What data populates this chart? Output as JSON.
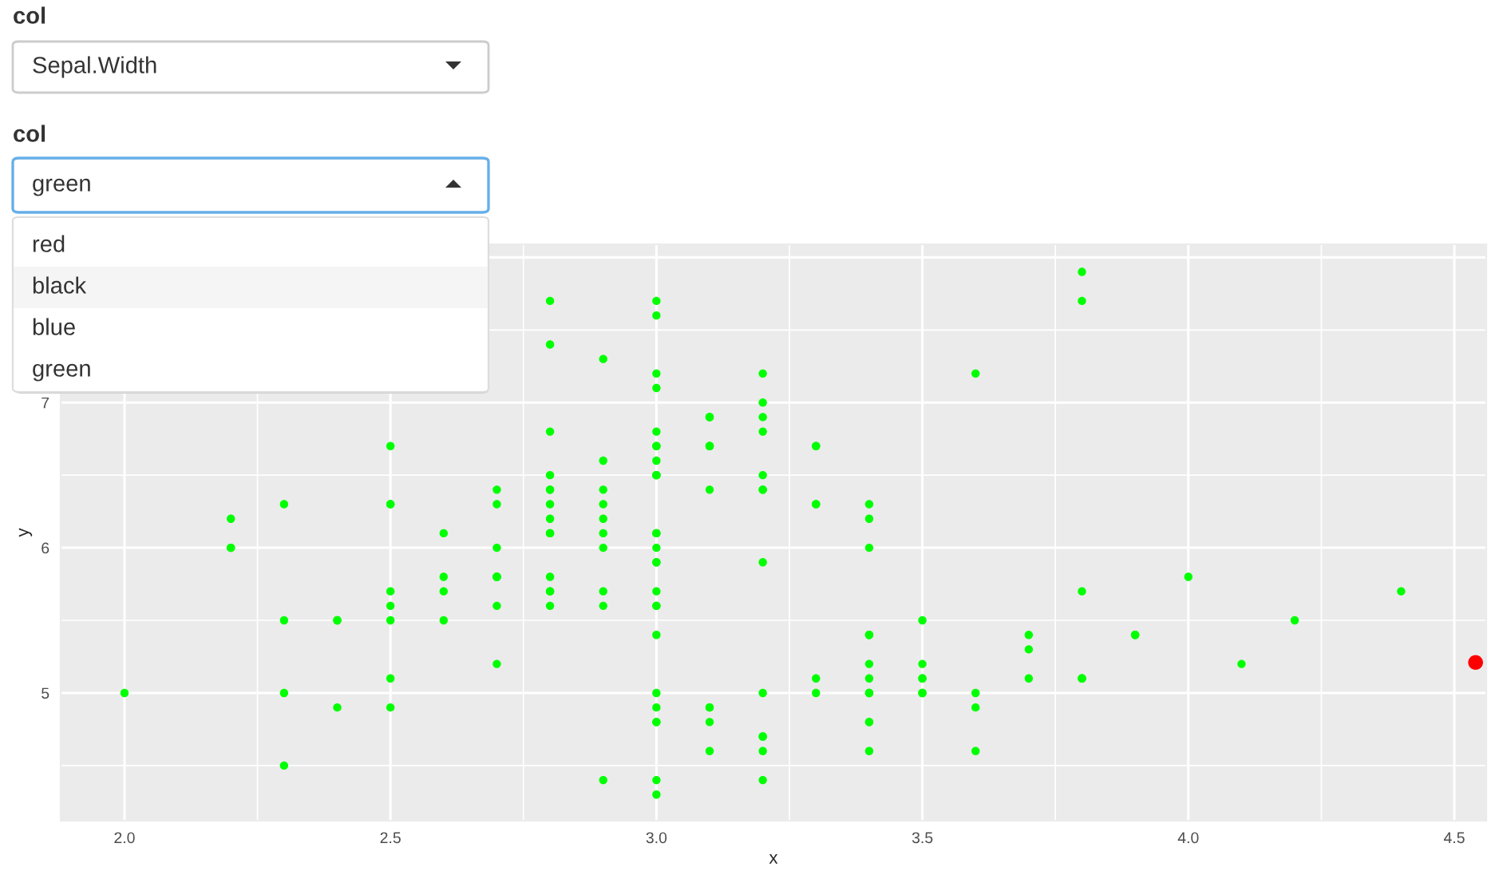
{
  "chart_data": {
    "type": "scatter",
    "xlabel": "x",
    "ylabel": "y",
    "annotations": [
      "col",
      "Sepal.Width",
      "col",
      "green",
      "red",
      "black",
      "blue",
      "green"
    ],
    "series": [
      {
        "color": "#00ff00",
        "x": [
          3.5,
          3.0,
          3.2,
          3.1,
          3.6,
          3.9,
          3.4,
          3.4,
          2.9,
          3.1,
          3.7,
          3.4,
          3.0,
          3.0,
          4.0,
          4.4,
          3.9,
          3.5,
          3.8,
          3.8,
          3.4,
          3.7,
          3.6,
          3.3,
          3.4,
          3.0,
          3.4,
          3.5,
          3.4,
          3.2,
          3.1,
          3.4,
          4.1,
          4.2,
          3.1,
          3.2,
          3.5,
          3.6,
          3.0,
          3.4,
          3.5,
          2.3,
          3.2,
          3.5,
          3.8,
          3.0,
          3.8,
          3.2,
          3.7,
          3.3,
          3.2,
          3.2,
          3.1,
          2.3,
          2.8,
          2.8,
          3.3,
          2.4,
          2.9,
          2.7,
          2.0,
          3.0,
          2.2,
          2.9,
          2.9,
          3.1,
          3.0,
          2.7,
          2.2,
          2.5,
          3.2,
          2.8,
          2.5,
          2.8,
          2.9,
          3.0,
          2.8,
          3.0,
          2.9,
          2.6,
          2.4,
          2.4,
          2.7,
          2.7,
          3.0,
          3.4,
          3.1,
          2.3,
          3.0,
          2.5,
          2.6,
          3.0,
          2.6,
          2.3,
          2.7,
          3.0,
          2.9,
          2.9,
          2.5,
          2.8,
          3.3,
          2.7,
          3.0,
          2.9,
          3.0,
          3.0,
          2.5,
          2.9,
          2.5,
          3.6,
          3.2,
          2.7,
          3.0,
          2.5,
          2.8,
          3.2,
          3.0,
          3.8,
          2.6,
          2.2,
          3.2,
          2.8,
          2.8,
          2.7,
          3.3,
          3.2,
          2.8,
          3.0,
          2.8,
          3.0,
          2.8,
          3.8,
          2.8,
          2.8,
          2.6,
          3.0,
          3.4,
          3.1,
          3.0,
          3.1,
          3.1,
          3.1,
          2.7,
          3.2,
          3.3,
          3.0,
          2.5,
          3.0,
          3.4,
          3.0
        ],
        "values": [
          5.1,
          4.9,
          4.7,
          4.6,
          5.0,
          5.4,
          4.6,
          5.0,
          4.4,
          4.9,
          5.4,
          4.8,
          4.8,
          4.3,
          5.8,
          5.7,
          5.4,
          5.1,
          5.7,
          5.1,
          5.4,
          5.1,
          4.6,
          5.1,
          4.8,
          5.0,
          5.0,
          5.2,
          5.2,
          4.7,
          4.8,
          5.4,
          5.2,
          5.5,
          4.9,
          5.0,
          5.5,
          4.9,
          4.4,
          5.1,
          5.0,
          4.5,
          4.4,
          5.0,
          5.1,
          4.8,
          5.1,
          4.6,
          5.3,
          5.0,
          7.0,
          6.4,
          6.9,
          5.5,
          6.5,
          5.7,
          6.3,
          4.9,
          6.6,
          5.2,
          5.0,
          5.9,
          6.0,
          6.1,
          5.6,
          6.7,
          5.6,
          5.8,
          6.2,
          5.6,
          5.9,
          6.1,
          6.3,
          6.1,
          6.4,
          6.6,
          6.8,
          6.7,
          6.0,
          5.7,
          5.5,
          5.5,
          5.8,
          6.0,
          5.4,
          6.0,
          6.7,
          6.3,
          5.6,
          5.5,
          5.5,
          6.1,
          5.8,
          5.0,
          5.6,
          5.7,
          5.7,
          6.2,
          5.1,
          5.7,
          6.3,
          5.8,
          7.1,
          6.3,
          6.5,
          7.6,
          4.9,
          7.3,
          6.7,
          7.2,
          6.5,
          6.4,
          6.8,
          5.7,
          5.8,
          6.4,
          6.5,
          7.7,
          null,
          6.0,
          6.9,
          5.6,
          7.7,
          6.3,
          6.7,
          7.2,
          6.2,
          6.1,
          6.4,
          7.2,
          7.4,
          7.9,
          6.4,
          6.3,
          6.1,
          7.7,
          6.3,
          6.4,
          6.0,
          6.9,
          6.7,
          6.9,
          5.8,
          6.8,
          6.7,
          6.7,
          6.3,
          6.5,
          6.2,
          5.9
        ]
      },
      {
        "color": "#ff0000",
        "x": [
          4.54
        ],
        "values": [
          5.21
        ]
      }
    ],
    "xlim": [
      1.88,
      4.56
    ],
    "ylim": [
      4.12,
      8.09
    ],
    "xticks": [
      {
        "value": 2,
        "label": "2.0"
      },
      2.5,
      {
        "value": 3,
        "label": "3.0"
      },
      3.5,
      {
        "value": 4,
        "label": "4.0"
      },
      4.5
    ],
    "yticks": [
      5,
      6,
      7,
      {
        "value": 8,
        "label": null
      }
    ],
    "grid": true,
    "marker": "circle"
  }
}
